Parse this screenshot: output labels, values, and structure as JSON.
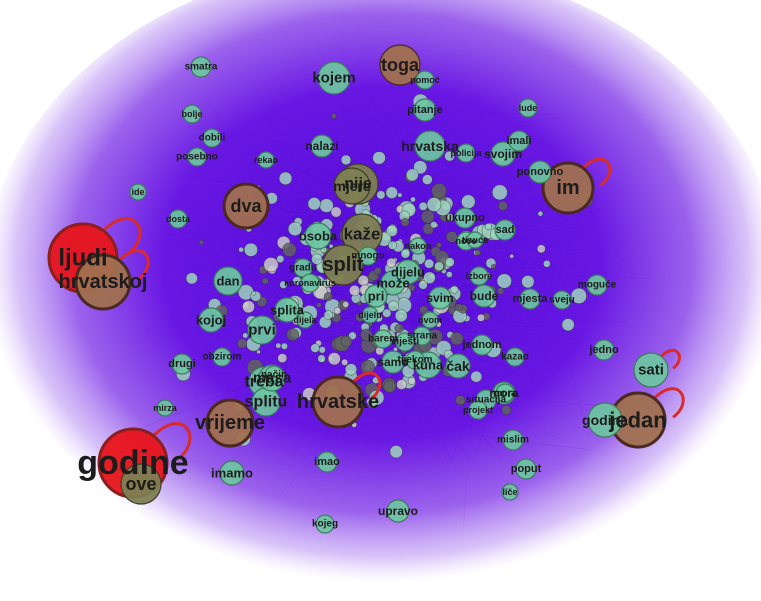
{
  "colors": {
    "background": "#ffffff",
    "edge_haze": "#7a2ee6",
    "edge_dense": "#5a10d8",
    "node_teal": "#6cc7a1",
    "node_brown": "#a0704f",
    "node_red": "#e8141a",
    "node_olive": "#7d7f52",
    "ring_dark": "#4a2a20",
    "self_loop": "#d92b2b"
  },
  "nodes": [
    {
      "label": "godine",
      "color": "red",
      "size": 34,
      "font": 34
    },
    {
      "label": "ljudi",
      "color": "red",
      "size": 34,
      "font": 24
    },
    {
      "label": "hrvatskoj",
      "color": "brown",
      "size": 27,
      "font": 20
    },
    {
      "label": "jedan",
      "color": "brown",
      "size": 27,
      "font": 22
    },
    {
      "label": "im",
      "color": "brown",
      "size": 25,
      "font": 20
    },
    {
      "label": "hrvatske",
      "color": "brown",
      "size": 25,
      "font": 20
    },
    {
      "label": "vrijeme",
      "color": "brown",
      "size": 23,
      "font": 20
    },
    {
      "label": "dva",
      "color": "brown",
      "size": 22,
      "font": 18
    },
    {
      "label": "toga",
      "color": "brown",
      "size": 20,
      "font": 18
    },
    {
      "label": "kaže",
      "color": "olive",
      "size": 20,
      "font": 17
    },
    {
      "label": "split",
      "color": "olive",
      "size": 20,
      "font": 20
    },
    {
      "label": "ove",
      "color": "olive",
      "size": 20,
      "font": 18
    },
    {
      "label": "nije",
      "color": "olive",
      "size": 20,
      "font": 16
    },
    {
      "label": "mjere",
      "color": "olive",
      "size": 18,
      "font": 14
    },
    {
      "label": "sati",
      "color": "teal",
      "size": 17,
      "font": 15
    },
    {
      "label": "godina",
      "color": "teal",
      "size": 17,
      "font": 14
    },
    {
      "label": "kojem",
      "color": "teal",
      "size": 16,
      "font": 15
    },
    {
      "label": "hrvatska",
      "color": "teal",
      "size": 15,
      "font": 14
    },
    {
      "label": "treba",
      "color": "teal",
      "size": 15,
      "font": 16
    },
    {
      "label": "splitu",
      "color": "teal",
      "size": 14,
      "font": 16
    },
    {
      "label": "dan",
      "color": "teal",
      "size": 14,
      "font": 13
    },
    {
      "label": "prvi",
      "color": "teal",
      "size": 14,
      "font": 15
    },
    {
      "label": "osoba",
      "color": "teal",
      "size": 13,
      "font": 13
    },
    {
      "label": "masa",
      "color": "teal",
      "size": 13,
      "font": 15
    },
    {
      "label": "kuna",
      "color": "teal",
      "size": 13,
      "font": 13
    },
    {
      "label": "čak",
      "color": "teal",
      "size": 12,
      "font": 14
    },
    {
      "label": "svojim",
      "color": "teal",
      "size": 12,
      "font": 12
    },
    {
      "label": "kojoj",
      "color": "teal",
      "size": 12,
      "font": 13
    },
    {
      "label": "splita",
      "color": "teal",
      "size": 12,
      "font": 13
    },
    {
      "label": "imamo",
      "color": "teal",
      "size": 12,
      "font": 13
    },
    {
      "label": "može",
      "color": "teal",
      "size": 12,
      "font": 13
    },
    {
      "label": "dijelu",
      "color": "teal",
      "size": 12,
      "font": 13
    },
    {
      "label": "pri",
      "color": "teal",
      "size": 11,
      "font": 13
    },
    {
      "label": "ponovno",
      "color": "teal",
      "size": 11,
      "font": 11
    },
    {
      "label": "mora",
      "color": "teal",
      "size": 11,
      "font": 12
    },
    {
      "label": "bude",
      "color": "teal",
      "size": 11,
      "font": 12
    },
    {
      "label": "svim",
      "color": "teal",
      "size": 11,
      "font": 12
    },
    {
      "label": "pitanje",
      "color": "teal",
      "size": 11,
      "font": 11
    },
    {
      "label": "nalazi",
      "color": "teal",
      "size": 11,
      "font": 12
    },
    {
      "label": "samo",
      "color": "teal",
      "size": 11,
      "font": 12
    },
    {
      "label": "upravo",
      "color": "teal",
      "size": 11,
      "font": 12
    },
    {
      "label": "drugi",
      "color": "teal",
      "size": 10,
      "font": 11
    },
    {
      "label": "mjesta",
      "color": "teal",
      "size": 10,
      "font": 11
    },
    {
      "label": "jedno",
      "color": "teal",
      "size": 10,
      "font": 11
    },
    {
      "label": "imao",
      "color": "teal",
      "size": 10,
      "font": 11
    },
    {
      "label": "moguće",
      "color": "teal",
      "size": 10,
      "font": 10
    },
    {
      "label": "sad",
      "color": "teal",
      "size": 10,
      "font": 11
    },
    {
      "label": "ukupno",
      "color": "teal",
      "size": 10,
      "font": 11
    },
    {
      "label": "situacija",
      "color": "teal",
      "size": 10,
      "font": 10
    },
    {
      "label": "imali",
      "color": "teal",
      "size": 10,
      "font": 11
    },
    {
      "label": "jednom",
      "color": "teal",
      "size": 10,
      "font": 11
    },
    {
      "label": "poput",
      "color": "teal",
      "size": 10,
      "font": 11
    },
    {
      "label": "mislim",
      "color": "teal",
      "size": 10,
      "font": 10
    },
    {
      "label": "smatra",
      "color": "teal",
      "size": 10,
      "font": 10
    },
    {
      "label": "dobili",
      "color": "teal",
      "size": 9,
      "font": 10
    },
    {
      "label": "obzirom",
      "color": "teal",
      "size": 9,
      "font": 10
    },
    {
      "label": "posebno",
      "color": "teal",
      "size": 9,
      "font": 10
    },
    {
      "label": "kojeg",
      "color": "teal",
      "size": 9,
      "font": 10
    },
    {
      "label": "mnogo",
      "color": "teal",
      "size": 9,
      "font": 10
    },
    {
      "label": "barem",
      "color": "teal",
      "size": 9,
      "font": 10
    },
    {
      "label": "kazao",
      "color": "teal",
      "size": 9,
      "font": 10
    },
    {
      "label": "vijesti",
      "color": "teal",
      "size": 9,
      "font": 10
    },
    {
      "label": "gradu",
      "color": "teal",
      "size": 9,
      "font": 10
    },
    {
      "label": "način",
      "color": "teal",
      "size": 9,
      "font": 10
    },
    {
      "label": "sveju",
      "color": "teal",
      "size": 9,
      "font": 10
    },
    {
      "label": "tijekom",
      "color": "teal",
      "size": 9,
      "font": 10
    },
    {
      "label": "koronavirus",
      "color": "teal",
      "size": 9,
      "font": 9
    },
    {
      "label": "projekt",
      "color": "teal",
      "size": 9,
      "font": 9
    },
    {
      "label": "strana",
      "color": "teal",
      "size": 9,
      "font": 10
    },
    {
      "label": "policija",
      "color": "teal",
      "size": 9,
      "font": 9
    },
    {
      "label": "izbore",
      "color": "teal",
      "size": 9,
      "font": 9
    },
    {
      "label": "lude",
      "color": "teal",
      "size": 9,
      "font": 9
    },
    {
      "label": "bolje",
      "color": "teal",
      "size": 9,
      "font": 9
    },
    {
      "label": "dosta",
      "color": "teal",
      "size": 9,
      "font": 9
    },
    {
      "label": "mora",
      "color": "teal",
      "size": 9,
      "font": 9
    },
    {
      "label": "pomoć",
      "color": "teal",
      "size": 9,
      "font": 9
    },
    {
      "label": "nove",
      "color": "teal",
      "size": 9,
      "font": 9
    },
    {
      "label": "ide",
      "color": "teal",
      "size": 8,
      "font": 9
    },
    {
      "label": "liče",
      "color": "teal",
      "size": 8,
      "font": 9
    },
    {
      "label": "mirza",
      "color": "teal",
      "size": 8,
      "font": 9
    },
    {
      "label": "dijela",
      "color": "teal",
      "size": 8,
      "font": 9
    },
    {
      "label": "rekao",
      "color": "teal",
      "size": 8,
      "font": 9
    },
    {
      "label": "ovom",
      "color": "teal",
      "size": 8,
      "font": 9
    },
    {
      "label": "nakon",
      "color": "teal",
      "size": 8,
      "font": 9
    },
    {
      "label": "tisuća",
      "color": "teal",
      "size": 8,
      "font": 9
    },
    {
      "label": "dijelu",
      "color": "teal",
      "size": 8,
      "font": 9
    }
  ]
}
